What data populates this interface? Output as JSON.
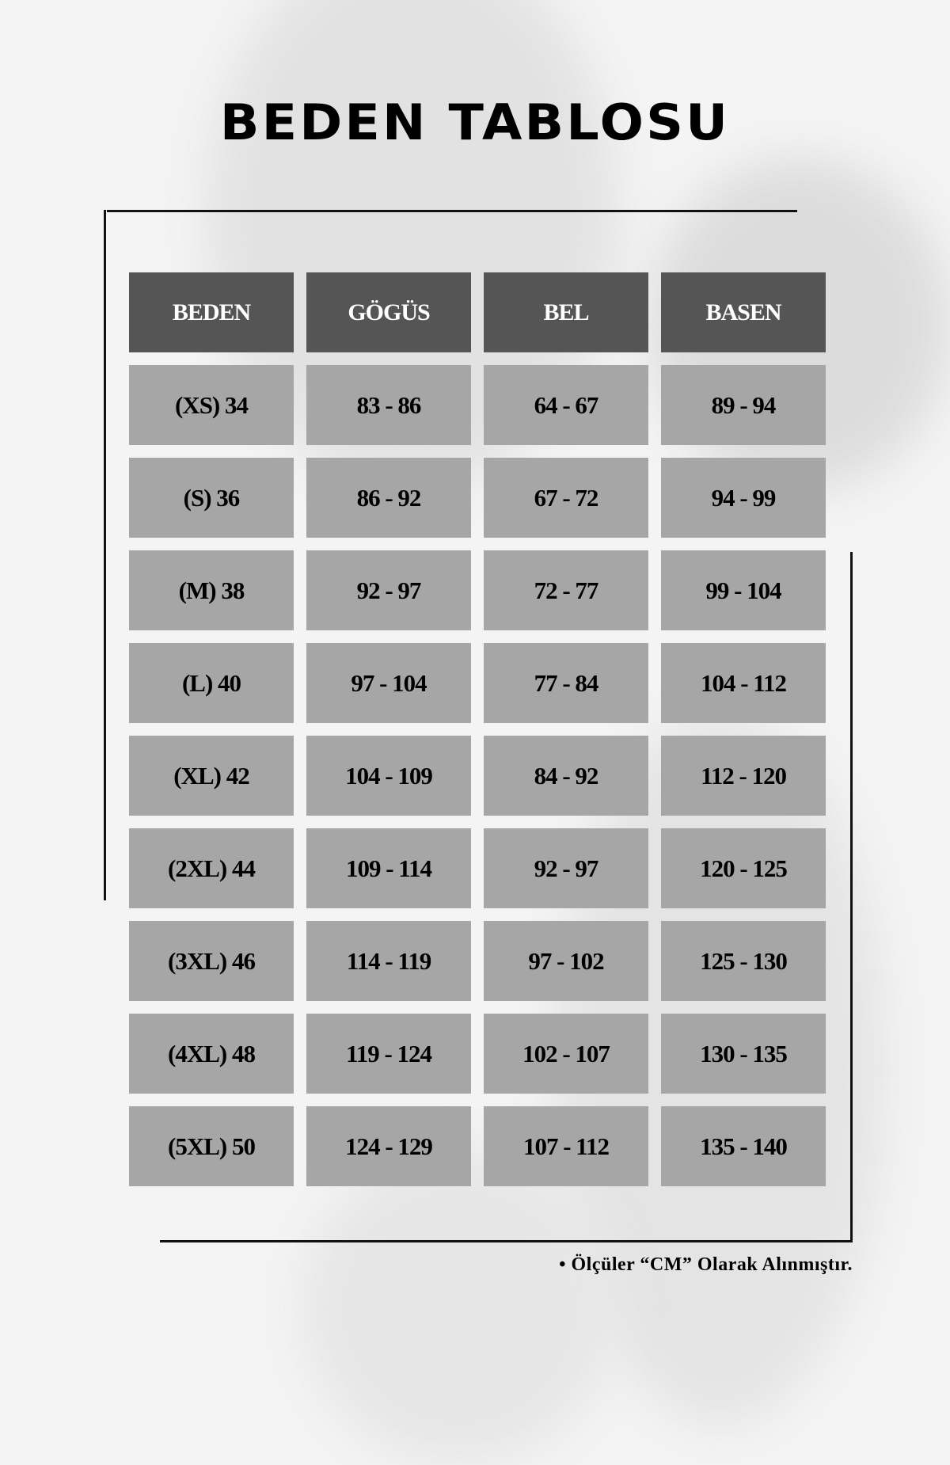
{
  "title": "BEDEN TABLOSU",
  "colors": {
    "header_bg": "#555555",
    "cell_bg": "#a6a6a6",
    "header_text": "#ffffff",
    "frame": "#111111"
  },
  "table": {
    "headers": [
      "BEDEN",
      "GÖGÜS",
      "BEL",
      "BASEN"
    ],
    "rows": [
      [
        "(XS) 34",
        "83 - 86",
        "64 - 67",
        "89 - 94"
      ],
      [
        "(S) 36",
        "86 - 92",
        "67 - 72",
        "94 - 99"
      ],
      [
        "(M) 38",
        "92 - 97",
        "72 - 77",
        "99 - 104"
      ],
      [
        "(L) 40",
        "97 - 104",
        "77 - 84",
        "104 - 112"
      ],
      [
        "(XL) 42",
        "104 - 109",
        "84 - 92",
        "112 - 120"
      ],
      [
        "(2XL) 44",
        "109 - 114",
        "92 - 97",
        "120 - 125"
      ],
      [
        "(3XL) 46",
        "114 - 119",
        "97 - 102",
        "125 - 130"
      ],
      [
        "(4XL) 48",
        "119 - 124",
        "102 - 107",
        "130 - 135"
      ],
      [
        "(5XL) 50",
        "124 - 129",
        "107 - 112",
        "135 - 140"
      ]
    ]
  },
  "note": "• Ölçüler “CM” Olarak Alınmıştır."
}
